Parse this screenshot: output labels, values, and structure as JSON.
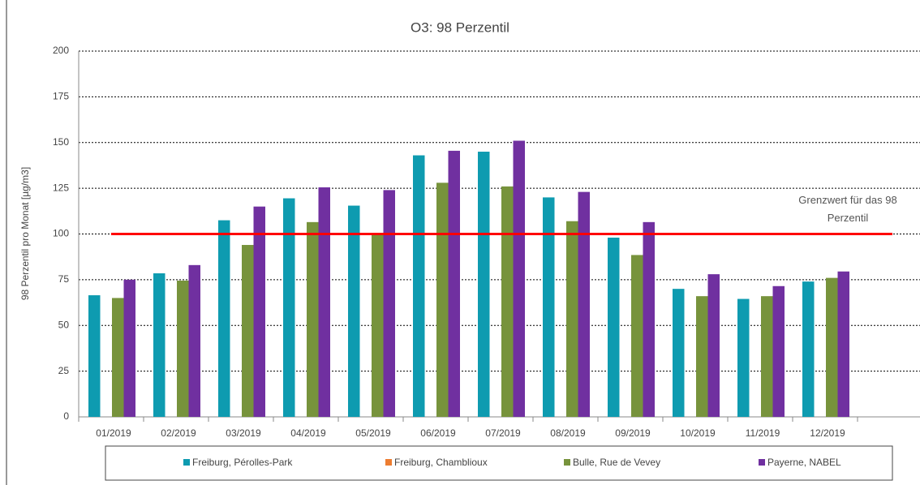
{
  "chart_data": {
    "type": "bar",
    "title": "O3: 98 Perzentil",
    "y_label": "98 Perzentil pro Monat [µg/m3]",
    "categories": [
      "01/2019",
      "02/2019",
      "03/2019",
      "04/2019",
      "05/2019",
      "06/2019",
      "07/2019",
      "08/2019",
      "09/2019",
      "10/2019",
      "11/2019",
      "12/2019",
      null
    ],
    "series": [
      {
        "name": "Freiburg, Pérolles-Park",
        "color": "#0e9bb0",
        "values": [
          66.5,
          78.5,
          107.5,
          119.5,
          115.5,
          143,
          145,
          120,
          98,
          70,
          64.5,
          74,
          null
        ]
      },
      {
        "name": "Freiburg, Chamblioux",
        "color": "#ed7d31",
        "values": [
          null,
          null,
          null,
          null,
          null,
          null,
          null,
          null,
          null,
          null,
          null,
          null,
          null
        ]
      },
      {
        "name": "Bulle, Rue de Vevey",
        "color": "#77933c",
        "values": [
          65,
          74.5,
          94,
          106.5,
          100,
          128,
          126,
          107,
          88.5,
          66,
          66,
          76,
          null
        ]
      },
      {
        "name": "Payerne, NABEL",
        "color": "#7030a0",
        "values": [
          75,
          83,
          115,
          125.5,
          124,
          145.5,
          151,
          123,
          106.5,
          78,
          71.5,
          79.5,
          null
        ]
      }
    ],
    "threshold": 100,
    "threshold_color": "#ff0000",
    "annotation": "Grenzwert für das 98 Perzentil",
    "ylim": [
      0,
      200
    ],
    "yticks": [
      0,
      25,
      50,
      75,
      100,
      125,
      150,
      175,
      200
    ],
    "grid": true
  }
}
